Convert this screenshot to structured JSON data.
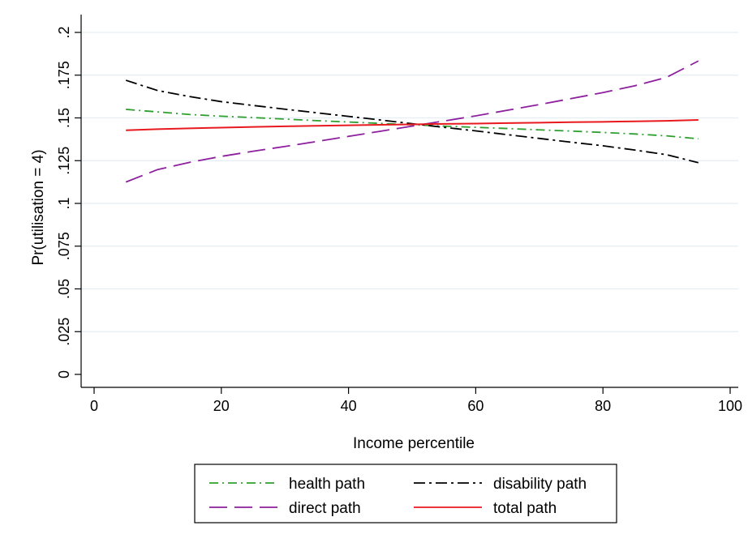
{
  "chart_data": {
    "type": "line",
    "title": "",
    "xlabel": "Income percentile",
    "ylabel": "Pr(utilisation = 4)",
    "xlim": [
      0,
      100
    ],
    "ylim": [
      0,
      0.2
    ],
    "x_ticks": [
      0,
      20,
      40,
      60,
      80,
      100
    ],
    "x_tick_labels": [
      "0",
      "20",
      "40",
      "60",
      "80",
      "100"
    ],
    "y_ticks": [
      0,
      0.025,
      0.05,
      0.075,
      0.1,
      0.125,
      0.15,
      0.175,
      0.2
    ],
    "y_tick_labels": [
      "0",
      ".025",
      ".05",
      ".075",
      ".1",
      ".125",
      ".15",
      ".175",
      ".2"
    ],
    "grid": "horizontal",
    "legend_position": "bottom",
    "x": [
      5,
      10,
      15,
      20,
      25,
      30,
      35,
      40,
      45,
      50,
      55,
      60,
      65,
      70,
      75,
      80,
      85,
      90,
      95
    ],
    "series": [
      {
        "name": "health path",
        "color": "#2e9e2e",
        "dash": "dash-dot",
        "values": [
          0.155,
          0.1535,
          0.152,
          0.151,
          0.1502,
          0.1493,
          0.1484,
          0.1476,
          0.1468,
          0.146,
          0.1452,
          0.1445,
          0.1438,
          0.143,
          0.1423,
          0.1415,
          0.1406,
          0.1395,
          0.1378
        ]
      },
      {
        "name": "disability path",
        "color": "#000000",
        "dash": "long-dash-dot",
        "values": [
          0.172,
          0.166,
          0.1625,
          0.1595,
          0.1573,
          0.1551,
          0.153,
          0.1509,
          0.1488,
          0.1466,
          0.1445,
          0.1424,
          0.1402,
          0.138,
          0.1358,
          0.1337,
          0.1312,
          0.1285,
          0.1238
        ]
      },
      {
        "name": "direct path",
        "color": "#8e1f9e",
        "dash": "long-dash",
        "values": [
          0.1125,
          0.1198,
          0.124,
          0.1275,
          0.1305,
          0.1333,
          0.1362,
          0.1392,
          0.1422,
          0.1452,
          0.1482,
          0.1512,
          0.1545,
          0.1578,
          0.1613,
          0.1648,
          0.1688,
          0.1737,
          0.1833
        ]
      },
      {
        "name": "total path",
        "color": "#e8191f",
        "dash": "solid",
        "values": [
          0.1428,
          0.1434,
          0.1439,
          0.1443,
          0.1447,
          0.1451,
          0.1454,
          0.1457,
          0.146,
          0.1462,
          0.1465,
          0.1467,
          0.147,
          0.1472,
          0.1475,
          0.1477,
          0.148,
          0.1483,
          0.1488
        ]
      }
    ]
  }
}
